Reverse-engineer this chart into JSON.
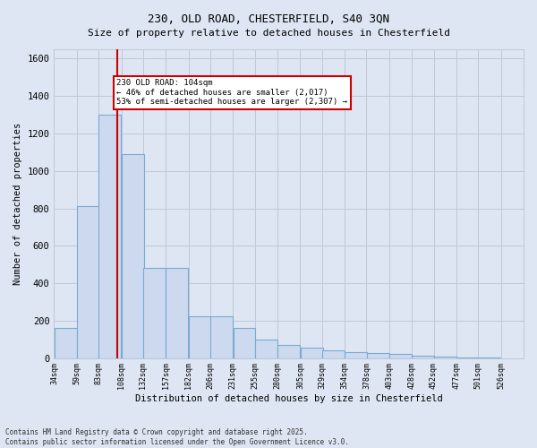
{
  "title_line1": "230, OLD ROAD, CHESTERFIELD, S40 3QN",
  "title_line2": "Size of property relative to detached houses in Chesterfield",
  "xlabel": "Distribution of detached houses by size in Chesterfield",
  "ylabel": "Number of detached properties",
  "property_size": 104,
  "annotation_text": "230 OLD ROAD: 104sqm\n← 46% of detached houses are smaller (2,017)\n53% of semi-detached houses are larger (2,307) →",
  "footnote_line1": "Contains HM Land Registry data © Crown copyright and database right 2025.",
  "footnote_line2": "Contains public sector information licensed under the Open Government Licence v3.0.",
  "bar_left_edges": [
    34,
    59,
    83,
    108,
    132,
    157,
    182,
    206,
    231,
    255,
    280,
    305,
    329,
    354,
    378,
    403,
    428,
    452,
    477,
    501
  ],
  "bar_heights": [
    160,
    810,
    1300,
    1090,
    480,
    480,
    225,
    225,
    160,
    100,
    70,
    55,
    40,
    30,
    25,
    20,
    10,
    8,
    5,
    3
  ],
  "bar_color": "#ccd9ee",
  "bar_edgecolor": "#7aaad0",
  "line_color": "#cc0000",
  "ylim": [
    0,
    1650
  ],
  "yticks": [
    0,
    200,
    400,
    600,
    800,
    1000,
    1200,
    1400,
    1600
  ],
  "grid_color": "#c0c8d8",
  "bg_color": "#dde6f2",
  "annotation_box_color": "#cc0000",
  "annotation_bg": "#ffffff"
}
